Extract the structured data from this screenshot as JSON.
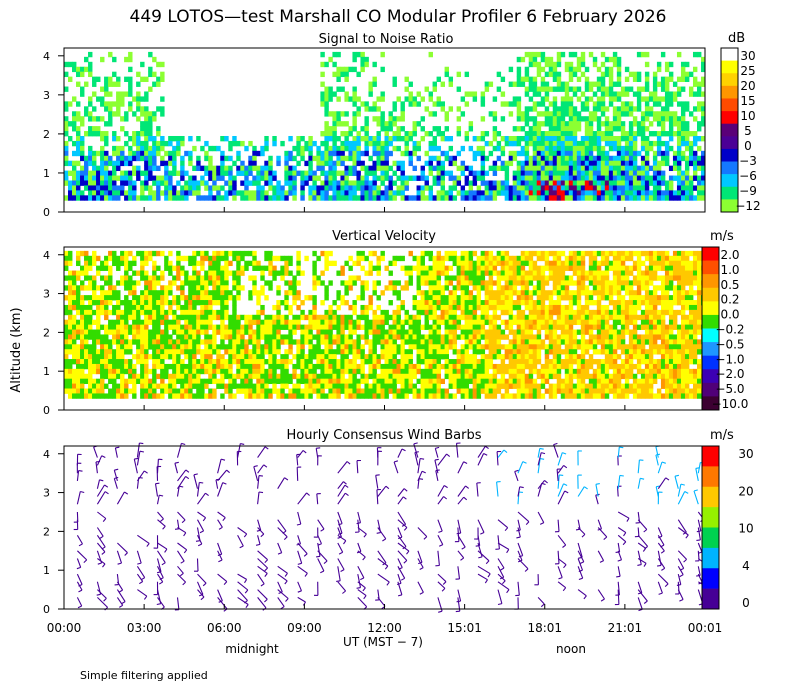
{
  "title": "449 LOTOS—test Marshall CO Modular Profiler  6 February 2026",
  "y_axis_label": "Altitude (km)",
  "x_axis_label": "UT  (MST − 7)",
  "time_ticks": [
    "00:00",
    "03:00",
    "06:00",
    "09:00",
    "12:00",
    "15:01",
    "18:01",
    "21:01",
    "00:01"
  ],
  "time_notes": [
    "midnight",
    "noon"
  ],
  "footer_note": "Simple filtering applied",
  "panels": [
    {
      "title": "Signal to Noise Ratio",
      "units": "dB"
    },
    {
      "title": "Vertical Velocity",
      "units": "m/s"
    },
    {
      "title": "Hourly Consensus Wind Barbs",
      "units": "m/s"
    }
  ],
  "chart_data": [
    {
      "type": "heatmap",
      "title": "Signal to Noise Ratio",
      "xlabel": "UT  (MST − 7)",
      "ylabel": "Altitude (km)",
      "ylim": [
        0,
        4.2
      ],
      "yticks": [
        0,
        1,
        2,
        3,
        4
      ],
      "xlim_hours": [
        0,
        24
      ],
      "colorbar": {
        "units": "dB",
        "labels": [
          "30",
          "25",
          "20",
          "15",
          "10",
          "5",
          "0",
          "−3",
          "−6",
          "−9",
          "−12"
        ],
        "colors": [
          "#ffffff",
          "#ffff00",
          "#ffd200",
          "#ff9600",
          "#ff4b00",
          "#ff0000",
          "#5a0078",
          "#4b0096",
          "#0000c8",
          "#1478ff",
          "#00c8ff",
          "#00e676",
          "#8cff32"
        ]
      }
    },
    {
      "type": "heatmap",
      "title": "Vertical Velocity",
      "xlabel": "UT  (MST − 7)",
      "ylabel": "Altitude (km)",
      "ylim": [
        0,
        4.2
      ],
      "yticks": [
        0,
        1,
        2,
        3,
        4
      ],
      "xlim_hours": [
        0,
        24
      ],
      "colorbar": {
        "units": "m/s",
        "labels": [
          "2.0",
          "1.0",
          "0.5",
          "0.2",
          "0.0",
          "−0.2",
          "−0.5",
          "−1.0",
          "−2.0",
          "−5.0",
          "−10.0"
        ],
        "colors": [
          "#ff0000",
          "#ff5000",
          "#ff9600",
          "#ffc800",
          "#ffff00",
          "#32dc00",
          "#00ffff",
          "#1e96ff",
          "#0032ff",
          "#3c00b4",
          "#500078",
          "#3c0032"
        ]
      }
    },
    {
      "type": "scatter",
      "title": "Hourly Consensus Wind Barbs",
      "xlabel": "UT  (MST − 7)",
      "ylabel": "Altitude (km)",
      "ylim": [
        0,
        4.2
      ],
      "yticks": [
        0,
        1,
        2,
        3,
        4
      ],
      "xlim_hours": [
        0,
        24
      ],
      "colorbar": {
        "units": "m/s",
        "labels": [
          "30",
          "20",
          "10",
          "4",
          "0"
        ],
        "colors": [
          "#ff0000",
          "#ff7800",
          "#ffc800",
          "#96f000",
          "#00d250",
          "#00b4ff",
          "#0000ff",
          "#460096"
        ]
      }
    }
  ]
}
